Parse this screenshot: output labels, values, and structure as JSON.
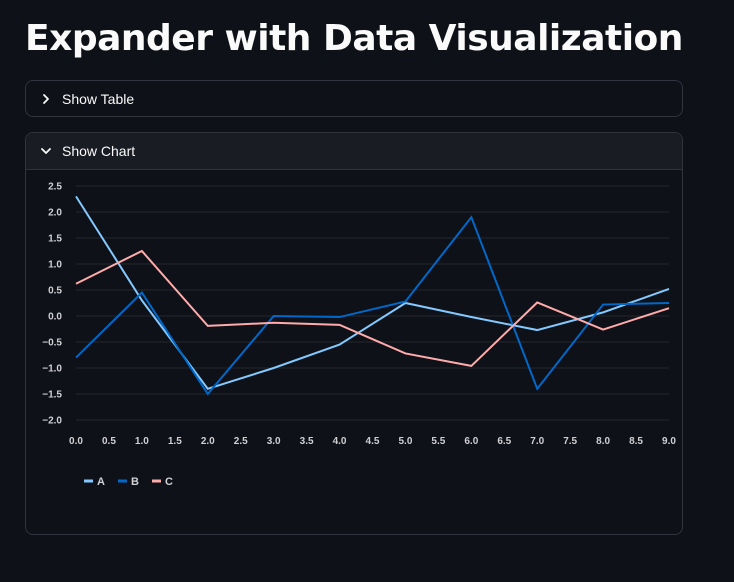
{
  "page": {
    "title": "Expander with Data Visualization"
  },
  "expanders": [
    {
      "label": "Show Table",
      "expanded": false
    },
    {
      "label": "Show Chart",
      "expanded": true
    }
  ],
  "colors": {
    "A": "#83c9ff",
    "B": "#0068c9",
    "C": "#ffabab",
    "grid": "#262730",
    "tick": "#d0d0d5"
  },
  "chart_data": {
    "type": "line",
    "x": [
      0,
      1,
      2,
      3,
      4,
      5,
      6,
      7,
      8,
      9
    ],
    "xticks": [
      "0.0",
      "0.5",
      "1.0",
      "1.5",
      "2.0",
      "2.5",
      "3.0",
      "3.5",
      "4.0",
      "4.5",
      "5.0",
      "5.5",
      "6.0",
      "6.5",
      "7.0",
      "7.5",
      "8.0",
      "8.5",
      "9.0"
    ],
    "yticks": [
      "2.5",
      "2.0",
      "1.5",
      "1.0",
      "0.5",
      "0.0",
      "−0.5",
      "−1.0",
      "−1.5",
      "−2.0"
    ],
    "ylim": [
      -2.0,
      2.5
    ],
    "xlim": [
      0,
      9
    ],
    "grid": true,
    "legend_position": "bottom-left",
    "series": [
      {
        "name": "A",
        "values": [
          2.3,
          0.3,
          -1.4,
          -1.0,
          -0.55,
          0.25,
          -0.02,
          -0.27,
          0.07,
          0.52
        ]
      },
      {
        "name": "B",
        "values": [
          -0.8,
          0.45,
          -1.5,
          0.0,
          -0.02,
          0.28,
          1.9,
          -1.4,
          0.22,
          0.25
        ]
      },
      {
        "name": "C",
        "values": [
          0.62,
          1.25,
          -0.19,
          -0.13,
          -0.17,
          -0.72,
          -0.96,
          0.26,
          -0.26,
          0.15
        ]
      }
    ]
  }
}
